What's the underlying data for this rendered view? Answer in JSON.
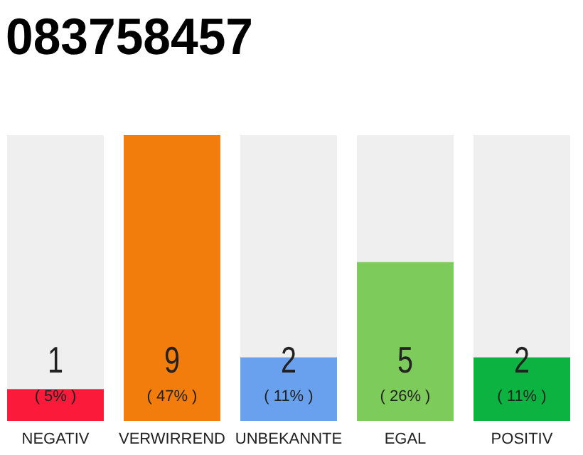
{
  "chart_data": {
    "type": "bar",
    "title": "083758457",
    "categories": [
      "NEGATIV",
      "VERWIRREND",
      "UNBEKANNTE",
      "EGAL",
      "POSITIV"
    ],
    "values": [
      1,
      9,
      2,
      5,
      2
    ],
    "colors": [
      "#fc1a3a",
      "#f27c0c",
      "#6aa1ee",
      "#7dcb5b",
      "#0db341"
    ],
    "data_labels": true,
    "annotations": [
      "( 5% )",
      "( 47% )",
      "( 11% )",
      "( 26% )",
      "( 11% )"
    ]
  }
}
